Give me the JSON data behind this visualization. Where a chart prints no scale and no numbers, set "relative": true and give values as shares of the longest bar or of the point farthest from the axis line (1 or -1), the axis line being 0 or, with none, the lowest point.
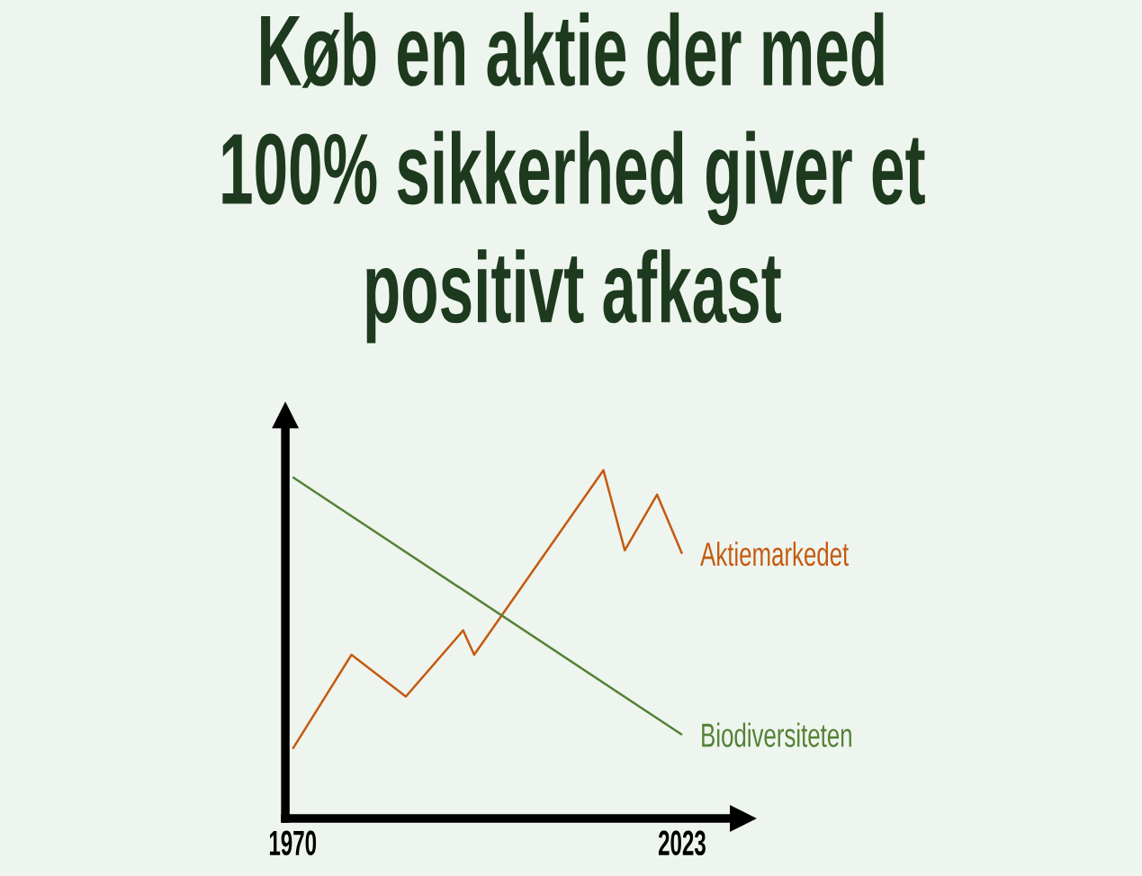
{
  "chart_data": {
    "type": "line",
    "title": "Køb en aktie der med 100% sikkerhed giver et positivt afkast",
    "relative": true,
    "xlim": [
      1969,
      2029.5
    ],
    "xticks": [
      1970,
      2023
    ],
    "tick_labels": "x",
    "legend": false,
    "marker": "none",
    "line_style": "solid",
    "series": [
      {
        "name": "Aktiemarkedet",
        "color": "#c55a11",
        "x": [
          1970,
          1978,
          1985.4,
          1993.2,
          1994.7,
          2012.3,
          2015.2,
          2019.6,
          2023
        ],
        "values": [
          0.2,
          0.47,
          0.35,
          0.54,
          0.47,
          1,
          0.77,
          0.93,
          0.76
        ]
      },
      {
        "name": "Biodiversiteten",
        "color": "#538135",
        "x": [
          1970,
          2023
        ],
        "values": [
          0.98,
          0.24
        ]
      }
    ]
  }
}
